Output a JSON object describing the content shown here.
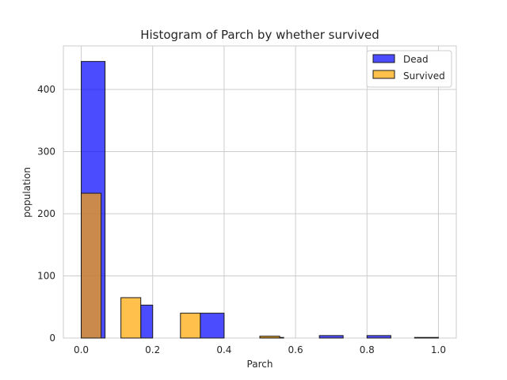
{
  "chart_data": {
    "type": "bar",
    "title": "Histogram of Parch by whether survived",
    "xlabel": "Parch",
    "ylabel": "population",
    "xlim": [
      -0.05,
      1.05
    ],
    "ylim": [
      0,
      470
    ],
    "xticks": [
      0.0,
      0.2,
      0.4,
      0.6,
      0.8,
      1.0
    ],
    "xtick_labels": [
      "0.0",
      "0.2",
      "0.4",
      "0.6",
      "0.8",
      "1.0"
    ],
    "yticks": [
      0,
      100,
      200,
      300,
      400
    ],
    "ytick_labels": [
      "0",
      "100",
      "200",
      "300",
      "400"
    ],
    "grid": true,
    "legend_position": "top-right",
    "series": [
      {
        "name": "Dead",
        "color": "#0000ff",
        "bins": [
          {
            "x0": 0.0,
            "x1": 0.0667,
            "value": 445
          },
          {
            "x0": 0.1667,
            "x1": 0.2,
            "value": 53
          },
          {
            "x0": 0.3333,
            "x1": 0.4,
            "value": 40
          },
          {
            "x0": 0.5,
            "x1": 0.5667,
            "value": 1
          },
          {
            "x0": 0.6667,
            "x1": 0.7333,
            "value": 4
          },
          {
            "x0": 0.8,
            "x1": 0.8667,
            "value": 4
          },
          {
            "x0": 0.9333,
            "x1": 1.0,
            "value": 1
          }
        ]
      },
      {
        "name": "Survived",
        "color": "#ffa500",
        "bins": [
          {
            "x0": 0.0,
            "x1": 0.0556,
            "value": 233
          },
          {
            "x0": 0.1111,
            "x1": 0.1667,
            "value": 65
          },
          {
            "x0": 0.2778,
            "x1": 0.3333,
            "value": 40
          },
          {
            "x0": 0.5,
            "x1": 0.5556,
            "value": 3
          }
        ]
      }
    ]
  }
}
